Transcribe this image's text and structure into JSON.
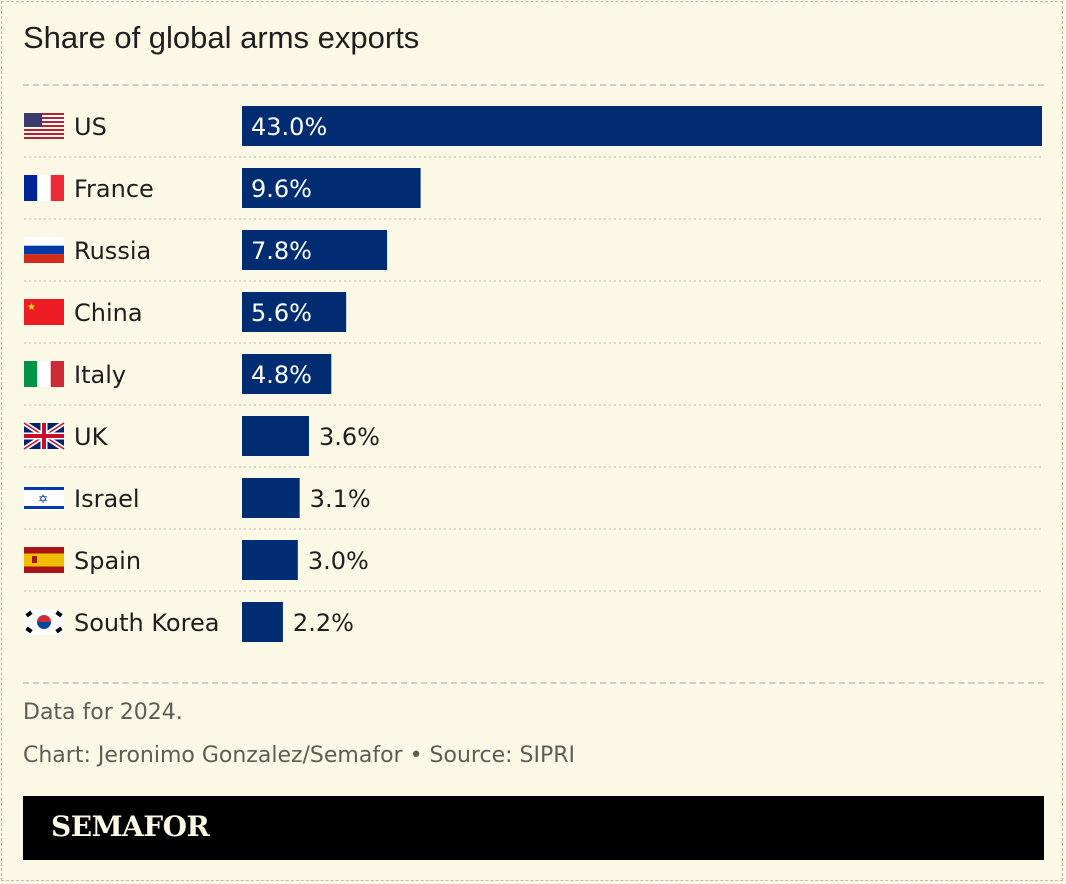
{
  "chart_data": {
    "type": "bar",
    "orientation": "horizontal",
    "title": "Share of global arms exports",
    "categories": [
      "US",
      "France",
      "Russia",
      "China",
      "Italy",
      "UK",
      "Israel",
      "Spain",
      "South Korea"
    ],
    "values": [
      43.0,
      9.6,
      7.8,
      5.6,
      4.8,
      3.6,
      3.1,
      3.0,
      2.2
    ],
    "value_labels": [
      "43.0%",
      "9.6%",
      "7.8%",
      "5.6%",
      "4.8%",
      "3.6%",
      "3.1%",
      "3.0%",
      "2.2%"
    ],
    "flag_icons": [
      "us-flag-icon",
      "france-flag-icon",
      "russia-flag-icon",
      "china-flag-icon",
      "italy-flag-icon",
      "uk-flag-icon",
      "israel-flag-icon",
      "spain-flag-icon",
      "south-korea-flag-icon"
    ],
    "bar_color": "#002d72",
    "xlim": [
      0,
      43
    ],
    "grid": false
  },
  "notes": {
    "data_note": "Data for 2024.",
    "credit": "Chart: Jeronimo Gonzalez/Semafor • Source: SIPRI"
  },
  "brand": {
    "logo_text": "SEMAFOR"
  }
}
